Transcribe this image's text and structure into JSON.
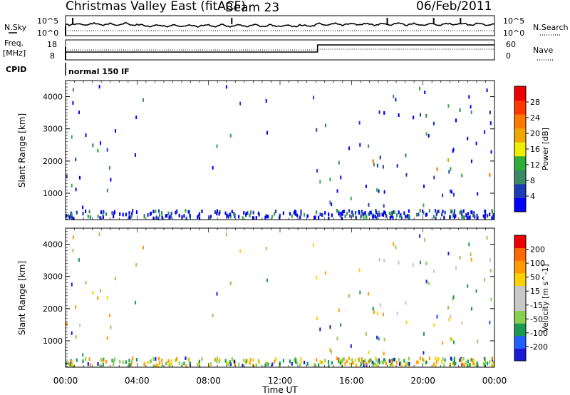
{
  "header": {
    "station": "Christmas Valley East (fitACF)",
    "beam": "Beam 23",
    "date": "06/Feb/2011"
  },
  "top_panels": {
    "nsky_label": "N.Sky",
    "nsky_ticks": [
      "10^5",
      "10^0"
    ],
    "nsearch_label": "N.Search",
    "nsearch_ticks": [
      "10^5",
      "10^0"
    ],
    "freq_label": "Freq.",
    "freq_unit": "[MHz]",
    "freq_ticks": [
      "18",
      "8"
    ],
    "nave_label": "Nave",
    "nave_ticks": [
      "60",
      "0"
    ],
    "cpid_label": "CPID",
    "cpid_value": "normal 150 IF"
  },
  "colorbars": {
    "power": {
      "label": "Power [dB]",
      "ticks": [
        "28",
        "24",
        "20",
        "16",
        "12",
        "8",
        "4"
      ],
      "colors": [
        "#0000ff",
        "#1e3cb4",
        "#3c8a64",
        "#2fae3c",
        "#f0ee00",
        "#f0a800",
        "#ff7800",
        "#ff3800",
        "#ee0000"
      ]
    },
    "velocity": {
      "label": "Velocity [m s^-1]",
      "ticks": [
        "200",
        "100",
        "50",
        "15",
        "-15",
        "-50",
        "-100",
        "-200"
      ],
      "colors": [
        "#1a1ad6",
        "#2060ff",
        "#1a9a50",
        "#8ad050",
        "#c8c8c8",
        "#c8c8c8",
        "#ffd000",
        "#ff9a00",
        "#ff6a00",
        "#ee0000"
      ]
    }
  },
  "chart_data": [
    {
      "type": "heatmap",
      "name": "power",
      "xlabel": "",
      "ylabel": "Slant Range [km]",
      "x_range_hours": [
        0,
        24
      ],
      "ylim": [
        180,
        4500
      ],
      "y_ticks": [
        1000,
        2000,
        3000,
        4000
      ],
      "scatter_regions": [
        {
          "t_start": 0.1,
          "t_end": 2.5,
          "r_start": 1150,
          "r_end": 2900,
          "level": "mixed"
        },
        {
          "t_start": 8.6,
          "t_end": 9.4,
          "r_start": 2150,
          "r_end": 3400,
          "level": "mixed"
        },
        {
          "t_start": 14.5,
          "t_end": 24.0,
          "r_start": 1500,
          "r_end": 2700,
          "level": "strong"
        },
        {
          "t_start": 16.0,
          "t_end": 24.0,
          "r_start": 2900,
          "r_end": 4300,
          "level": "weak"
        },
        {
          "t_start": 0.0,
          "t_end": 24.0,
          "r_start": 180,
          "r_end": 450,
          "level": "weak"
        }
      ]
    },
    {
      "type": "heatmap",
      "name": "velocity",
      "xlabel": "Time UT",
      "ylabel": "Slant Range [km]",
      "x_range_hours": [
        0,
        24
      ],
      "x_ticks": [
        "00:00",
        "04:00",
        "08:00",
        "12:00",
        "16:00",
        "20:00",
        "00:00"
      ],
      "ylim": [
        180,
        4500
      ],
      "y_ticks": [
        1000,
        2000,
        3000,
        4000
      ],
      "scatter_regions": [
        {
          "t_start": 0.1,
          "t_end": 2.5,
          "r_start": 1150,
          "r_end": 2900,
          "level": "negative"
        },
        {
          "t_start": 8.6,
          "t_end": 9.4,
          "r_start": 2150,
          "r_end": 3400,
          "level": "near-zero"
        },
        {
          "t_start": 14.5,
          "t_end": 24.0,
          "r_start": 1500,
          "r_end": 2700,
          "level": "near-zero"
        },
        {
          "t_start": 16.0,
          "t_end": 24.0,
          "r_start": 2900,
          "r_end": 4300,
          "level": "near-zero"
        },
        {
          "t_start": 0.0,
          "t_end": 24.0,
          "r_start": 180,
          "r_end": 450,
          "level": "mixed"
        }
      ]
    }
  ]
}
